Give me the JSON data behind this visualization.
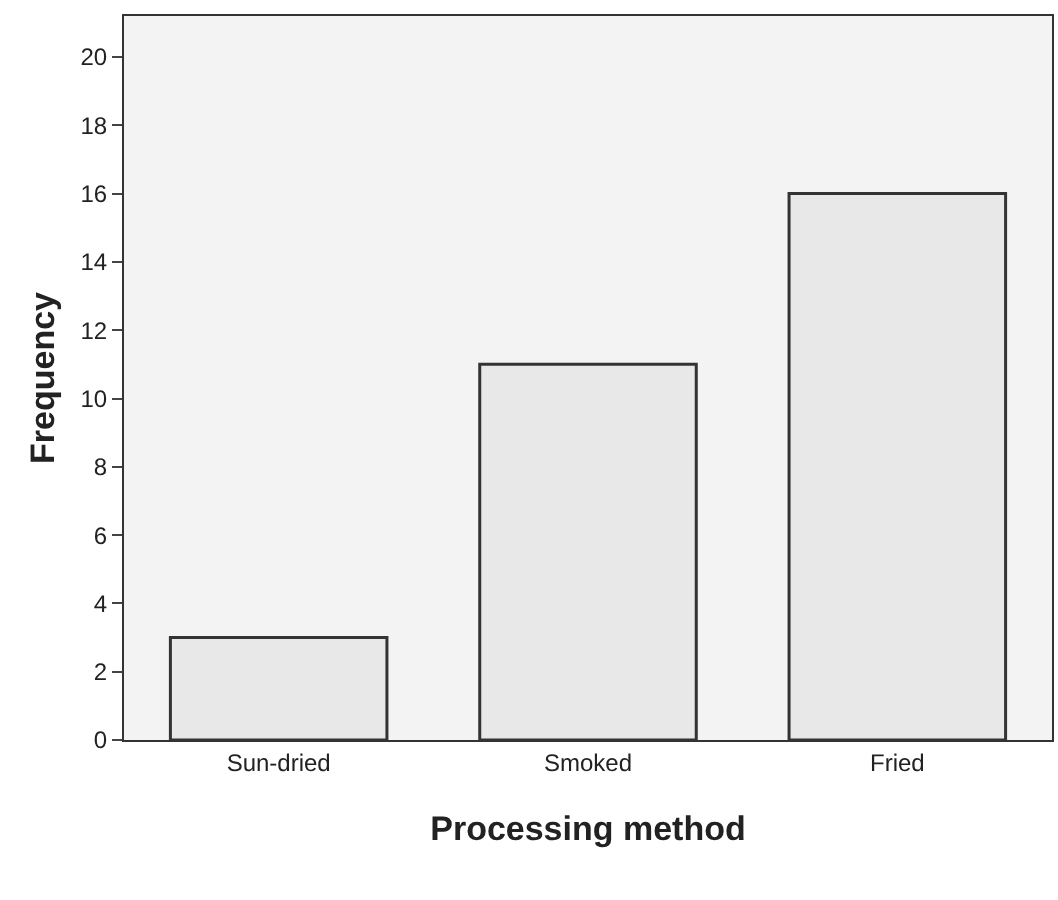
{
  "chart_data": {
    "type": "bar",
    "xlabel": "Processing method",
    "ylabel": "Frequency",
    "categories": [
      "Sun-dried",
      "Smoked",
      "Fried"
    ],
    "values": [
      3,
      11,
      16
    ],
    "color": "#e8e8e8",
    "ylim": [
      0,
      21.2
    ],
    "yticks": [
      0,
      2,
      4,
      6,
      8,
      10,
      12,
      14,
      16,
      18,
      20
    ],
    "grid": false
  }
}
